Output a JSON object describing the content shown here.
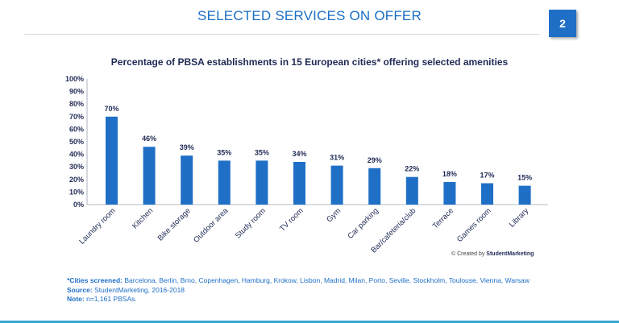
{
  "header": {
    "title": "SELECTED SERVICES ON OFFER",
    "page_number": "2"
  },
  "chart_data": {
    "type": "bar",
    "title": "Percentage of PBSA establishments in 15 European cities* offering selected amenities",
    "categories": [
      "Laundry room",
      "Kitchen",
      "Bike storage",
      "Outdoor area",
      "Study room",
      "TV room",
      "Gym",
      "Car parking",
      "Bar/cafeteria/club",
      "Terrace",
      "Games room",
      "Library"
    ],
    "values": [
      70,
      46,
      39,
      35,
      35,
      34,
      31,
      29,
      22,
      18,
      17,
      15
    ],
    "value_labels": [
      "70%",
      "46%",
      "39%",
      "35%",
      "35%",
      "34%",
      "31%",
      "29%",
      "22%",
      "18%",
      "17%",
      "15%"
    ],
    "y_ticks": [
      "0%",
      "10%",
      "20%",
      "30%",
      "40%",
      "50%",
      "60%",
      "70%",
      "80%",
      "90%",
      "100%"
    ],
    "ylim": [
      0,
      100
    ],
    "bar_color": "#1f6fc6",
    "grid": false,
    "xlabel": "",
    "ylabel": ""
  },
  "credit": {
    "prefix": "© Created by",
    "brand": "StudentMarketing"
  },
  "footnotes": {
    "cities_label": "*Cities screened:",
    "cities_text": "Barcelona, Berlin, Brno, Copenhagen, Hamburg, Krokow, Lisbon, Madrid, Milan, Porto, Seville, Stockholm, Toulouse, Vienna, Warsaw",
    "source_label": "Source:",
    "source_text": "StudentMarketing, 2016-2018",
    "note_label": "Note:",
    "note_text": "n=1,161 PBSAs."
  },
  "colors": {
    "accent": "#1f6fc6",
    "bottom_rule": "#3aa6d6"
  }
}
